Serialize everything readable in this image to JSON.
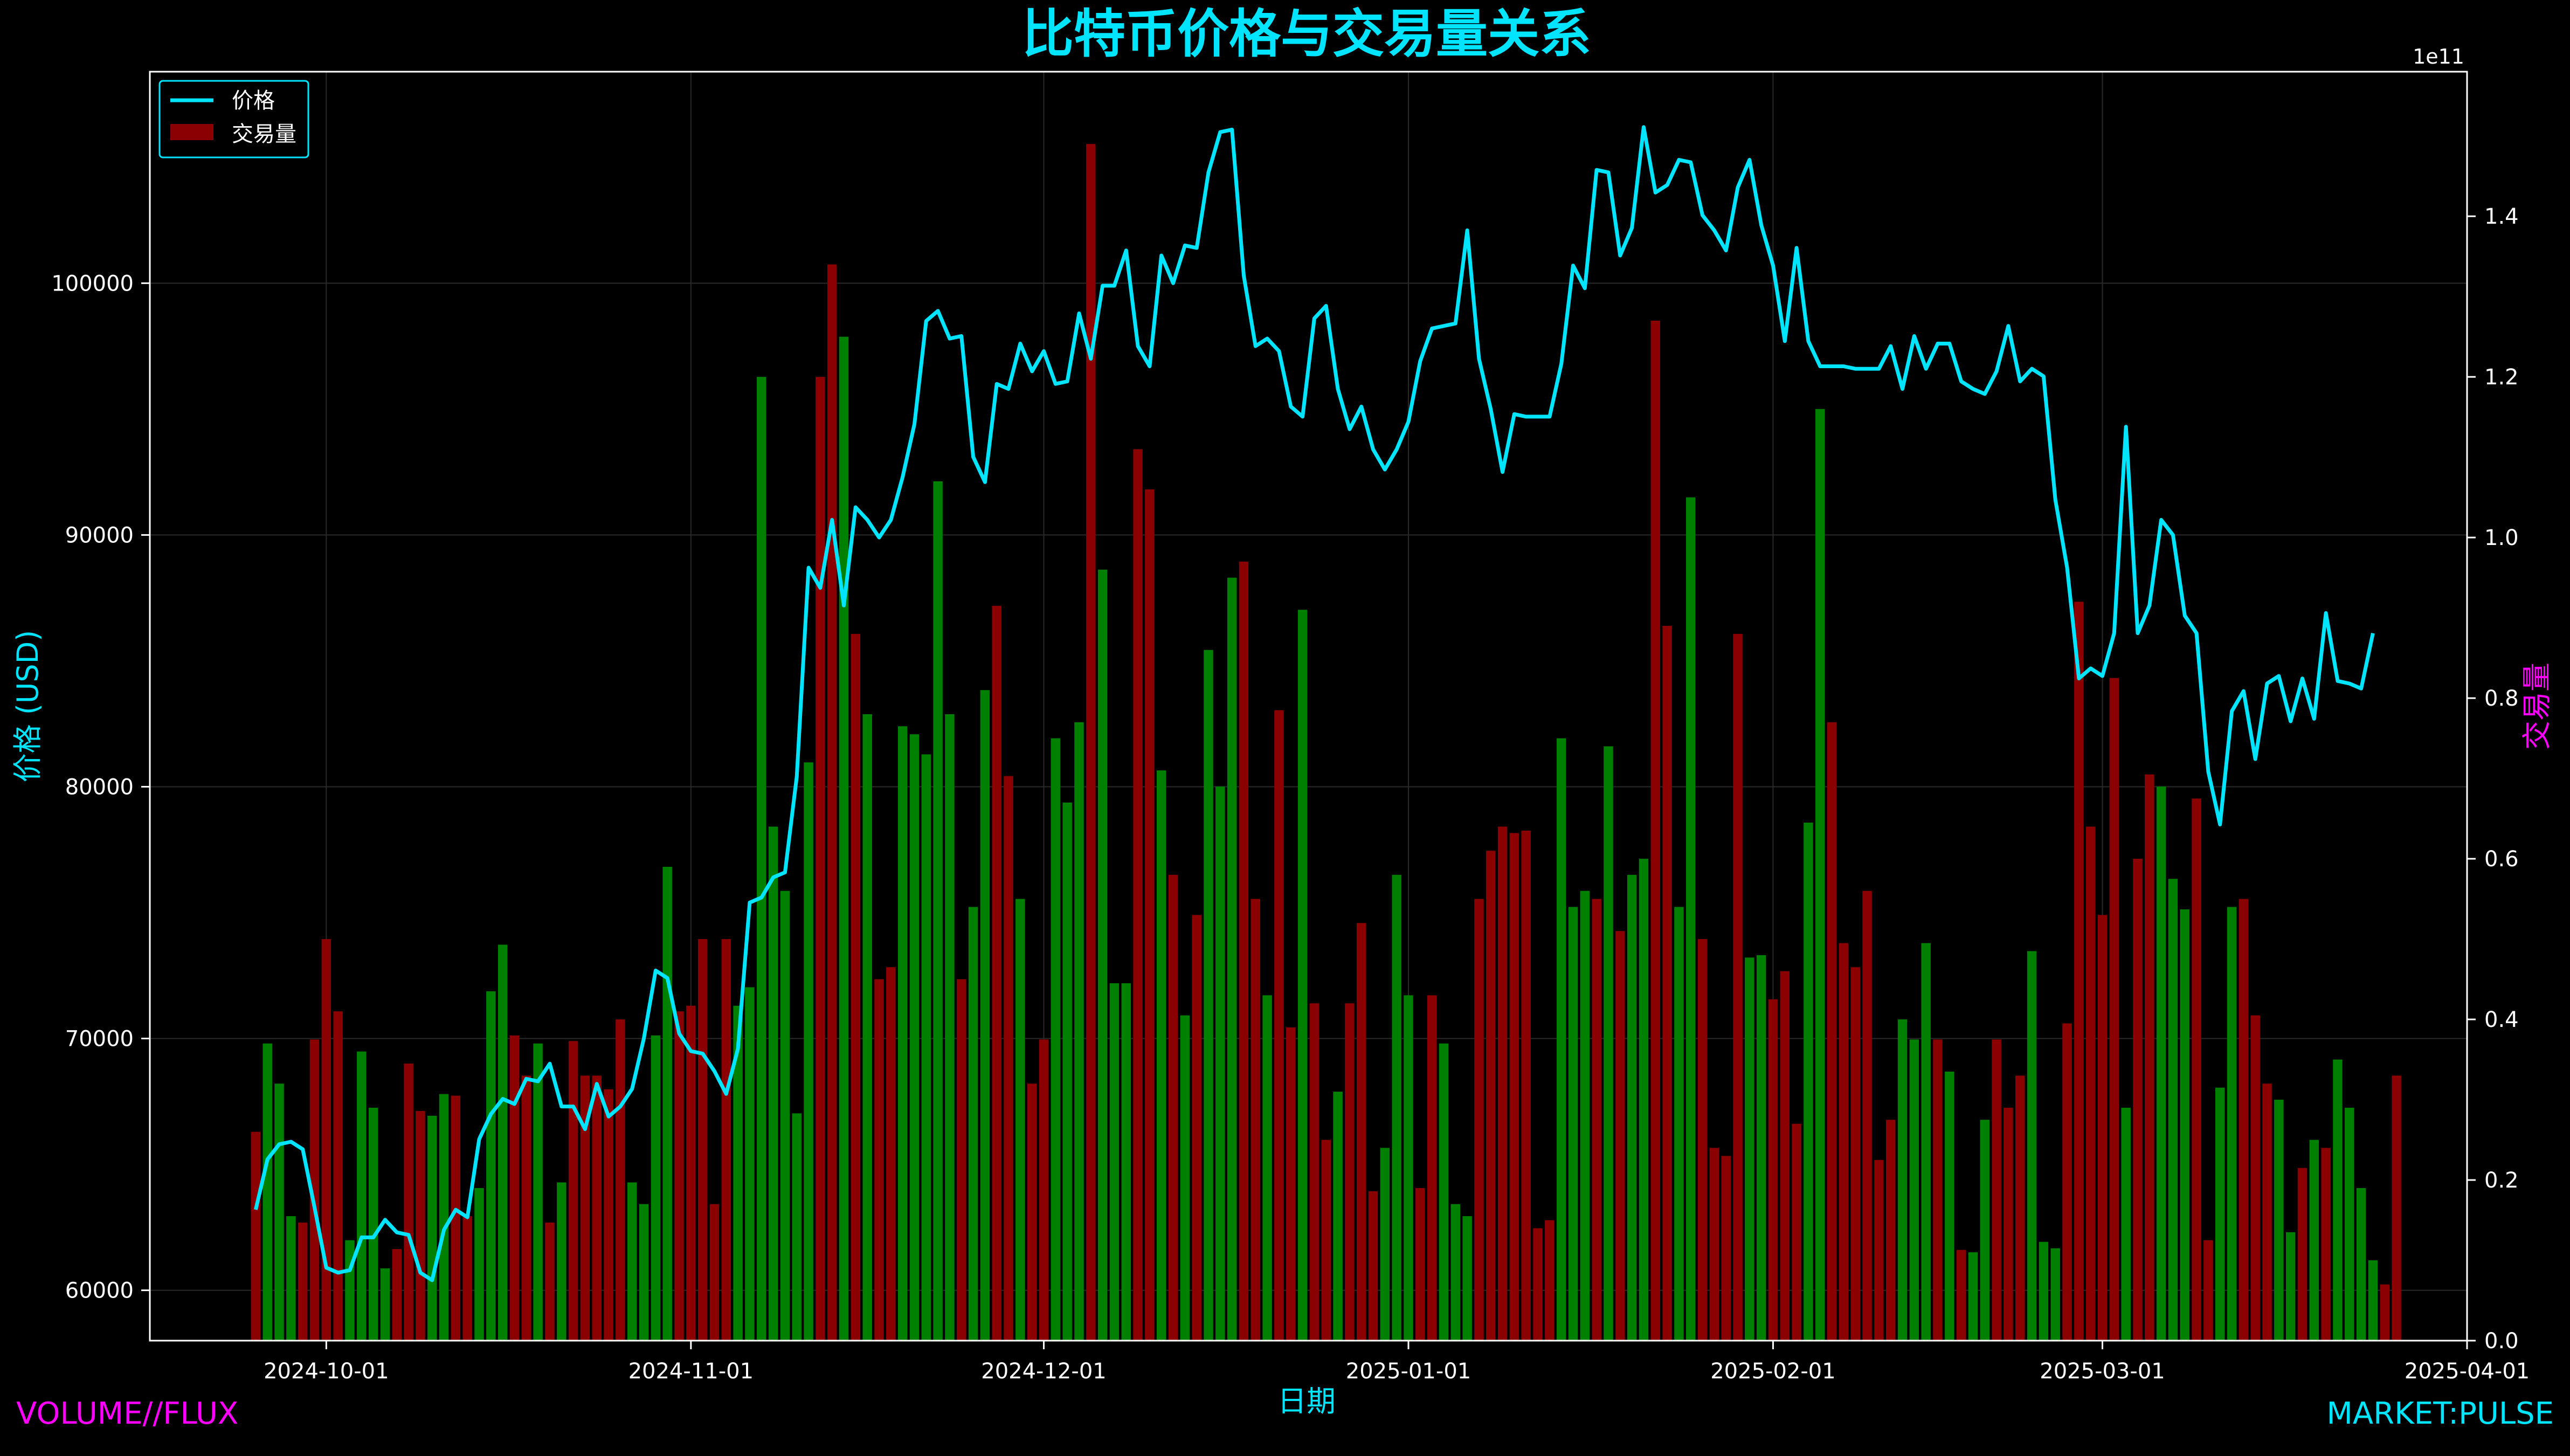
{
  "watermark_left": "VOLUME//FLUX",
  "watermark_right": "MARKET:PULSE",
  "colors": {
    "background": "#000000",
    "price_line": "#00e5ff",
    "title": "#00e5ff",
    "ylabel_right": "#ff00ff",
    "volume_up": "#008000",
    "volume_down": "#8b0000",
    "grid": "#2a2a2a",
    "axes": "#ffffff"
  },
  "chart_data": {
    "type": "line+bar",
    "title": "比特币价格与交易量关系",
    "xlabel": "日期",
    "ylabel": "价格 (USD)",
    "y2label": "交易量",
    "y2_offset_label": "1e11",
    "xlim": [
      "2024-09-16",
      "2025-04-01"
    ],
    "ylim": [
      58000,
      108400
    ],
    "y2lim": [
      0,
      1.58
    ],
    "y2_scale_note": "values in units of 1e11",
    "x_ticks": [
      "2024-10-01",
      "2024-11-01",
      "2024-12-01",
      "2025-01-01",
      "2025-02-01",
      "2025-03-01",
      "2025-04-01"
    ],
    "y_ticks": [
      60000,
      70000,
      80000,
      90000,
      100000
    ],
    "y2_ticks": [
      "0.0",
      "0.2",
      "0.4",
      "0.6",
      "0.8",
      "1.0",
      "1.2",
      "1.4"
    ],
    "legend": {
      "placement": "upper-left",
      "entries": [
        "价格",
        "交易量"
      ]
    },
    "grid": true,
    "start_date": "2024-09-25",
    "end_date": "2025-03-24",
    "price": [
      63200,
      65200,
      65800,
      65900,
      65600,
      63300,
      60900,
      60700,
      60800,
      62100,
      62100,
      62800,
      62300,
      62200,
      60700,
      60400,
      62400,
      63200,
      62900,
      66000,
      67000,
      67600,
      67400,
      68400,
      68300,
      69000,
      67300,
      67300,
      66400,
      68200,
      66900,
      67300,
      68000,
      70000,
      72700,
      72400,
      70200,
      69500,
      69400,
      68700,
      67800,
      69600,
      75400,
      75600,
      76400,
      76600,
      80400,
      88700,
      87900,
      90600,
      87200,
      91100,
      90600,
      89900,
      90600,
      92300,
      94400,
      98500,
      98900,
      97800,
      97900,
      93100,
      92100,
      96000,
      95800,
      97600,
      96500,
      97300,
      96000,
      96100,
      98800,
      97000,
      99900,
      99900,
      101300,
      97500,
      96700,
      101100,
      100000,
      101500,
      101400,
      104400,
      106000,
      106100,
      100300,
      97500,
      97800,
      97300,
      95100,
      94700,
      98600,
      99100,
      95800,
      94200,
      95100,
      93400,
      92600,
      93400,
      94500,
      96900,
      98200,
      98300,
      98400,
      102100,
      97000,
      95000,
      92500,
      94800,
      94700,
      94700,
      94700,
      96800,
      100700,
      99800,
      104500,
      104400,
      101100,
      102200,
      106200,
      103600,
      103900,
      104900,
      104800,
      102700,
      102100,
      101300,
      103800,
      104900,
      102300,
      100700,
      97700,
      101400,
      97700,
      96700,
      96700,
      96700,
      96600,
      96600,
      96600,
      97500,
      95800,
      97900,
      96600,
      97600,
      97600,
      96100,
      95800,
      95600,
      96500,
      98300,
      96100,
      96600,
      96300,
      91400,
      88700,
      84300,
      84700,
      84400,
      86100,
      94300,
      86100,
      87200,
      90600,
      90000,
      86800,
      86100,
      80600,
      78500,
      83000,
      83800,
      81100,
      84100,
      84400,
      82600,
      84300,
      82700,
      86900,
      84200,
      84100,
      83900,
      86100
    ],
    "volume": [
      0.26,
      0.37,
      0.32,
      0.155,
      0.147,
      0.375,
      0.5,
      0.41,
      0.125,
      0.36,
      0.29,
      0.09,
      0.114,
      0.345,
      0.286,
      0.28,
      0.307,
      0.305,
      0.155,
      0.19,
      0.435,
      0.493,
      0.38,
      0.33,
      0.37,
      0.147,
      0.197,
      0.373,
      0.33,
      0.33,
      0.313,
      0.4,
      0.197,
      0.17,
      0.38,
      0.59,
      0.41,
      0.417,
      0.5,
      0.17,
      0.5,
      0.417,
      0.44,
      1.2,
      0.64,
      0.56,
      0.283,
      0.72,
      1.2,
      1.34,
      1.25,
      0.88,
      0.78,
      0.45,
      0.465,
      0.765,
      0.755,
      0.73,
      1.07,
      0.78,
      0.45,
      0.54,
      0.81,
      0.915,
      0.703,
      0.55,
      0.32,
      0.375,
      0.75,
      0.67,
      0.77,
      1.49,
      0.96,
      0.445,
      0.445,
      1.11,
      1.06,
      0.71,
      0.58,
      0.405,
      0.53,
      0.86,
      0.69,
      0.95,
      0.97,
      0.55,
      0.43,
      0.785,
      0.39,
      0.91,
      0.42,
      0.25,
      0.31,
      0.42,
      0.52,
      0.186,
      0.24,
      0.58,
      0.43,
      0.19,
      0.43,
      0.37,
      0.17,
      0.155,
      0.55,
      0.61,
      0.64,
      0.632,
      0.635,
      0.14,
      0.15,
      0.75,
      0.54,
      0.56,
      0.55,
      0.74,
      0.51,
      0.58,
      0.6,
      1.27,
      0.89,
      0.54,
      1.05,
      0.5,
      0.24,
      0.23,
      0.88,
      0.477,
      0.48,
      0.425,
      0.46,
      0.27,
      0.645,
      1.16,
      0.77,
      0.495,
      0.465,
      0.56,
      0.225,
      0.275,
      0.4,
      0.375,
      0.495,
      0.375,
      0.335,
      0.113,
      0.11,
      0.275,
      0.375,
      0.29,
      0.33,
      0.485,
      0.123,
      0.115,
      0.395,
      0.92,
      0.64,
      0.53,
      0.825,
      0.29,
      0.6,
      0.705,
      0.69,
      0.575,
      0.537,
      0.675,
      0.125,
      0.315,
      0.54,
      0.55,
      0.405,
      0.32,
      0.3,
      0.135,
      0.215,
      0.25,
      0.24,
      0.35,
      0.29,
      0.19,
      0.1,
      0.07,
      0.33
    ],
    "volume_direction": [
      "down",
      "up",
      "up",
      "up",
      "down",
      "down",
      "down",
      "down",
      "up",
      "up",
      "up",
      "up",
      "down",
      "down",
      "down",
      "up",
      "up",
      "down",
      "down",
      "up",
      "up",
      "up",
      "down",
      "down",
      "up",
      "down",
      "up",
      "down",
      "down",
      "down",
      "down",
      "down",
      "up",
      "up",
      "up",
      "up",
      "down",
      "down",
      "down",
      "down",
      "down",
      "up",
      "up",
      "up",
      "up",
      "up",
      "up",
      "up",
      "down",
      "down",
      "up",
      "down",
      "up",
      "down",
      "down",
      "up",
      "up",
      "up",
      "up",
      "up",
      "down",
      "up",
      "up",
      "down",
      "down",
      "up",
      "down",
      "down",
      "up",
      "up",
      "up",
      "down",
      "up",
      "up",
      "up",
      "down",
      "down",
      "up",
      "down",
      "up",
      "down",
      "up",
      "up",
      "up",
      "down",
      "down",
      "up",
      "down",
      "down",
      "up",
      "down",
      "down",
      "up",
      "down",
      "down",
      "down",
      "up",
      "up",
      "up",
      "down",
      "down",
      "up",
      "up",
      "up",
      "down",
      "down",
      "down",
      "down",
      "down",
      "down",
      "down",
      "up",
      "up",
      "up",
      "down",
      "up",
      "down",
      "up",
      "up",
      "down",
      "down",
      "up",
      "up",
      "down",
      "down",
      "down",
      "down",
      "up",
      "up",
      "down",
      "down",
      "down",
      "up",
      "up",
      "down",
      "down",
      "down",
      "down",
      "down",
      "down",
      "up",
      "up",
      "up",
      "down",
      "up",
      "down",
      "up",
      "up",
      "down",
      "down",
      "down",
      "up",
      "up",
      "up",
      "down",
      "down",
      "down",
      "down",
      "down",
      "up",
      "down",
      "down",
      "up",
      "up",
      "up",
      "down",
      "down",
      "up",
      "up",
      "down",
      "down",
      "down",
      "up",
      "up",
      "down",
      "up",
      "down",
      "up",
      "up",
      "up",
      "up",
      "down",
      "down",
      "down",
      "up",
      "down",
      "down"
    ]
  }
}
